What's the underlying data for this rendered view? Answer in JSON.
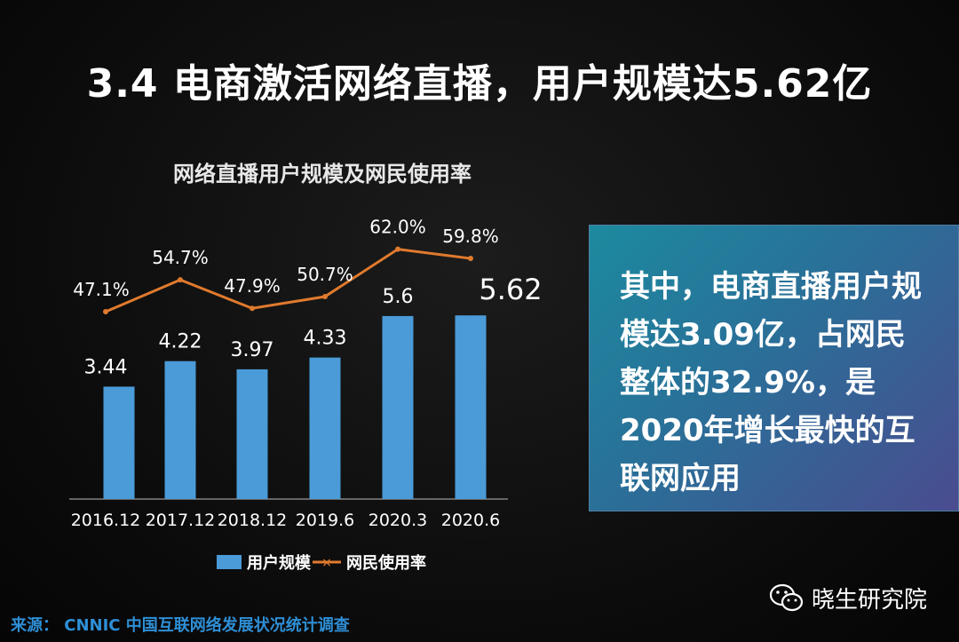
{
  "title": "3.4 电商激活网络直播，用户规模达5.62亿",
  "callout": "其中，电商直播用户规模达3.09亿，占网民整体的32.9%，是2020年增长最快的互联网应用",
  "source": "来源： CNNIC 中国互联网络发展状况统计调查",
  "watermark": "晓生研究院",
  "chart_data": {
    "type": "bar",
    "title": "网络直播用户规模及网民使用率",
    "categories": [
      "2016.12",
      "2017.12",
      "2018.12",
      "2019.6",
      "2020.3",
      "2020.6"
    ],
    "series": [
      {
        "name": "用户规模",
        "type": "bar",
        "values": [
          3.44,
          4.22,
          3.97,
          4.33,
          5.6,
          5.62
        ],
        "labels": [
          "3.44",
          "4.22",
          "3.97",
          "4.33",
          "5.6",
          "5.62"
        ],
        "color": "#4a9bd8"
      },
      {
        "name": "网民使用率",
        "type": "line",
        "values": [
          47.1,
          54.7,
          47.9,
          50.7,
          62.0,
          59.8
        ],
        "labels": [
          "47.1%",
          "54.7%",
          "47.9%",
          "50.7%",
          "62.0%",
          "59.8%"
        ],
        "color": "#e07a2e"
      }
    ],
    "legend": "bottom",
    "grid": false
  }
}
